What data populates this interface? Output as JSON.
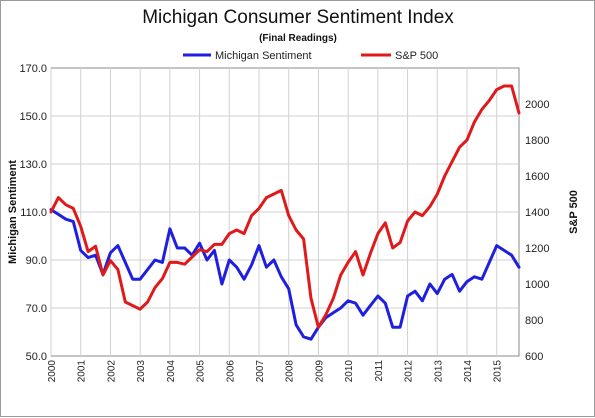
{
  "chart_data": {
    "type": "line",
    "title": "Michigan Consumer Sentiment Index",
    "subtitle": "(Final Readings)",
    "ylabel_left": "Michigan Sentiment",
    "ylabel_right": "S&P 500",
    "ylim_left": [
      50,
      170
    ],
    "ylim_right": [
      600,
      2200
    ],
    "left_ticks": [
      "50.0",
      "70.0",
      "90.0",
      "110.0",
      "130.0",
      "150.0",
      "170.0"
    ],
    "right_ticks": [
      "600",
      "800",
      "1000",
      "1200",
      "1400",
      "1600",
      "1800",
      "2000"
    ],
    "x_ticks": [
      "2000",
      "2001",
      "2002",
      "2003",
      "2004",
      "2005",
      "2006",
      "2007",
      "2008",
      "2009",
      "2010",
      "2011",
      "2012",
      "2013",
      "2014",
      "2015"
    ],
    "xlim": [
      2000,
      2015.75
    ],
    "grid": true,
    "legend_position": "top",
    "series": [
      {
        "name": "Michigan Sentiment",
        "color": "#1f1fe0",
        "axis": "left",
        "x": [
          2000.0,
          2000.25,
          2000.5,
          2000.75,
          2001.0,
          2001.25,
          2001.5,
          2001.75,
          2002.0,
          2002.25,
          2002.5,
          2002.75,
          2003.0,
          2003.25,
          2003.5,
          2003.75,
          2004.0,
          2004.25,
          2004.5,
          2004.75,
          2005.0,
          2005.25,
          2005.5,
          2005.75,
          2006.0,
          2006.25,
          2006.5,
          2006.75,
          2007.0,
          2007.25,
          2007.5,
          2007.75,
          2008.0,
          2008.25,
          2008.5,
          2008.75,
          2009.0,
          2009.25,
          2009.5,
          2009.75,
          2010.0,
          2010.25,
          2010.5,
          2010.75,
          2011.0,
          2011.25,
          2011.5,
          2011.75,
          2012.0,
          2012.25,
          2012.5,
          2012.75,
          2013.0,
          2013.25,
          2013.5,
          2013.75,
          2014.0,
          2014.25,
          2014.5,
          2014.75,
          2015.0,
          2015.25,
          2015.5,
          2015.75
        ],
        "values": [
          111,
          109,
          107,
          106,
          94,
          91,
          92,
          84,
          93,
          96,
          89,
          82,
          82,
          86,
          90,
          89,
          103,
          95,
          95,
          92,
          97,
          90,
          94,
          80,
          90,
          87,
          82,
          88,
          96,
          87,
          90,
          83,
          78,
          63,
          58,
          57,
          62,
          66,
          68,
          70,
          73,
          72,
          67,
          71,
          75,
          72,
          62,
          62,
          75,
          77,
          73,
          80,
          76,
          82,
          84,
          77,
          81,
          83,
          82,
          89,
          96,
          94,
          92,
          87
        ]
      },
      {
        "name": "S&P 500",
        "color": "#e01a1a",
        "axis": "right",
        "x": [
          2000.0,
          2000.25,
          2000.5,
          2000.75,
          2001.0,
          2001.25,
          2001.5,
          2001.75,
          2002.0,
          2002.25,
          2002.5,
          2002.75,
          2003.0,
          2003.25,
          2003.5,
          2003.75,
          2004.0,
          2004.25,
          2004.5,
          2004.75,
          2005.0,
          2005.25,
          2005.5,
          2005.75,
          2006.0,
          2006.25,
          2006.5,
          2006.75,
          2007.0,
          2007.25,
          2007.5,
          2007.75,
          2008.0,
          2008.25,
          2008.5,
          2008.75,
          2009.0,
          2009.25,
          2009.5,
          2009.75,
          2010.0,
          2010.25,
          2010.5,
          2010.75,
          2011.0,
          2011.25,
          2011.5,
          2011.75,
          2012.0,
          2012.25,
          2012.5,
          2012.75,
          2013.0,
          2013.25,
          2013.5,
          2013.75,
          2014.0,
          2014.25,
          2014.5,
          2014.75,
          2015.0,
          2015.25,
          2015.5,
          2015.75
        ],
        "values": [
          1400,
          1480,
          1440,
          1420,
          1320,
          1180,
          1210,
          1050,
          1130,
          1080,
          900,
          880,
          860,
          900,
          980,
          1030,
          1120,
          1120,
          1110,
          1150,
          1190,
          1180,
          1220,
          1220,
          1280,
          1300,
          1280,
          1380,
          1420,
          1480,
          1500,
          1520,
          1380,
          1300,
          1250,
          920,
          760,
          830,
          920,
          1050,
          1120,
          1180,
          1050,
          1170,
          1280,
          1340,
          1200,
          1230,
          1350,
          1400,
          1380,
          1430,
          1500,
          1600,
          1680,
          1760,
          1800,
          1900,
          1970,
          2020,
          2080,
          2100,
          2100,
          1950
        ]
      }
    ]
  }
}
